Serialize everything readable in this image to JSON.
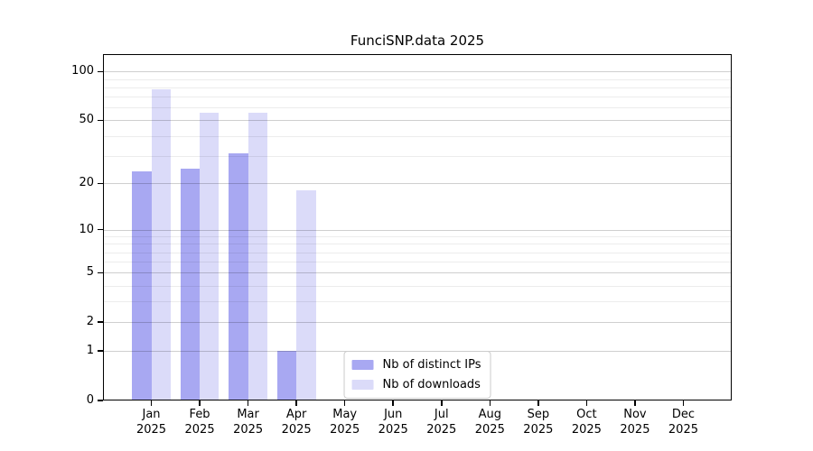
{
  "chart_data": {
    "type": "bar",
    "title": "FunciSNP.data 2025",
    "x_categories": [
      "Jan",
      "Feb",
      "Mar",
      "Apr",
      "May",
      "Jun",
      "Jul",
      "Aug",
      "Sep",
      "Oct",
      "Nov",
      "Dec"
    ],
    "x_year": "2025",
    "series": [
      {
        "name": "Nb of distinct IPs",
        "color": "#a8a8f2",
        "values": [
          24,
          25,
          31,
          1,
          0,
          0,
          0,
          0,
          0,
          0,
          0,
          0
        ]
      },
      {
        "name": "Nb of downloads",
        "color": "#dbdbf9",
        "values": [
          78,
          56,
          56,
          18,
          0,
          0,
          0,
          0,
          0,
          0,
          0,
          0
        ]
      }
    ],
    "yscale": "log10(1+y)",
    "ylim": [
      0,
      128
    ],
    "yticks": [
      0,
      1,
      2,
      5,
      10,
      20,
      50,
      100
    ],
    "minor_grid_values": [
      3,
      4,
      6,
      7,
      8,
      9,
      30,
      40,
      60,
      70,
      80,
      90
    ],
    "grid": true,
    "legend_position": "lower center",
    "axis_colors": {
      "spine": "#000000",
      "grid_major": "rgba(0,0,0,0.19)",
      "grid_minor": "rgba(0,0,0,0.075)"
    }
  }
}
